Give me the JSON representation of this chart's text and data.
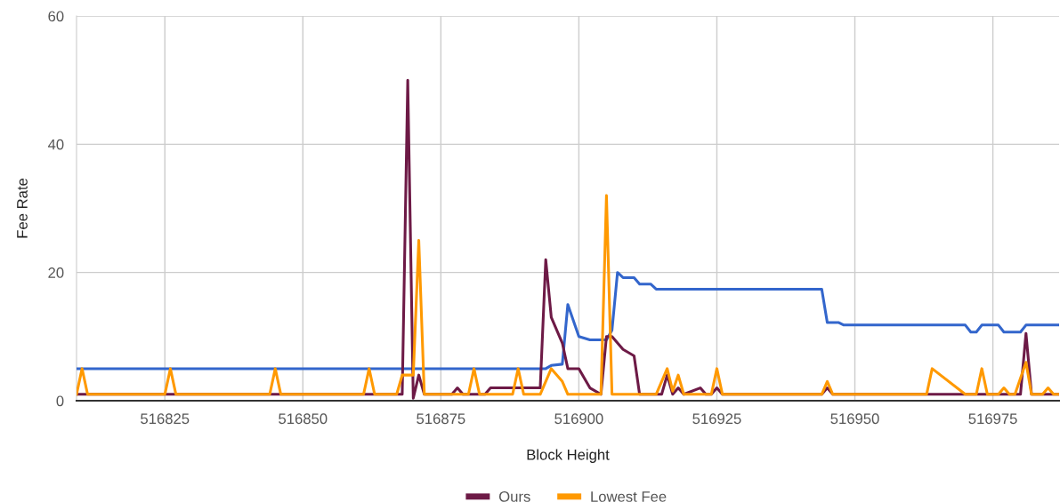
{
  "chart_data": {
    "type": "line",
    "xlabel": "Block Height",
    "ylabel": "Fee Rate",
    "xlim": [
      516809,
      516987
    ],
    "xticks": [
      516825,
      516850,
      516875,
      516900,
      516925,
      516950,
      516975
    ],
    "ylim": [
      0,
      60
    ],
    "yticks": [
      0,
      20,
      40,
      60
    ],
    "grid": true,
    "legend": "bottom",
    "marker": "none",
    "line_style": "solid",
    "series": [
      {
        "color": "#3366cc",
        "x": [
          516809,
          516894,
          516895,
          516897,
          516898,
          516900,
          516902,
          516905,
          516906,
          516907,
          516908,
          516910,
          516911,
          516913,
          516914,
          516944,
          516945,
          516947,
          516948,
          516970,
          516971,
          516972,
          516973,
          516976,
          516977,
          516980,
          516981,
          516987
        ],
        "values": [
          5,
          5,
          5.5,
          5.7,
          15,
          10,
          9.5,
          9.5,
          11,
          20,
          19.2,
          19.2,
          18.2,
          18.2,
          17.4,
          17.4,
          12.2,
          12.2,
          11.8,
          11.8,
          10.7,
          10.7,
          11.8,
          11.8,
          10.7,
          10.7,
          11.8,
          11.8
        ]
      },
      {
        "name": "Ours",
        "color": "#6d1a46",
        "x": [
          516809,
          516868,
          516869,
          516870,
          516871,
          516872,
          516877,
          516878,
          516879,
          516883,
          516884,
          516893,
          516894,
          516895,
          516897,
          516898,
          516900,
          516902,
          516904,
          516905,
          516906,
          516908,
          516910,
          516911,
          516915,
          516916,
          516917,
          516918,
          516919,
          516922,
          516923,
          516924,
          516925,
          516926,
          516944,
          516945,
          516946,
          516980,
          516981,
          516982,
          516987
        ],
        "values": [
          1,
          1,
          50,
          0.4,
          4,
          1,
          1,
          2,
          1,
          1,
          2,
          2,
          22,
          13,
          9,
          5,
          5,
          2,
          1,
          10,
          10,
          8,
          7,
          1,
          1,
          4,
          1,
          2,
          1,
          2,
          1,
          1,
          2,
          1,
          1,
          2,
          1,
          1,
          10.5,
          1,
          1
        ]
      },
      {
        "name": "Lowest Fee",
        "color": "#ff9900",
        "x": [
          516809,
          516810,
          516811,
          516825,
          516826,
          516827,
          516844,
          516845,
          516846,
          516861,
          516862,
          516863,
          516867,
          516868,
          516870,
          516871,
          516872,
          516880,
          516881,
          516882,
          516888,
          516889,
          516890,
          516893,
          516895,
          516897,
          516898,
          516904,
          516905,
          516906,
          516914,
          516916,
          516917,
          516918,
          516919,
          516924,
          516925,
          516926,
          516944,
          516945,
          516946,
          516963,
          516964,
          516970,
          516972,
          516973,
          516974,
          516976,
          516977,
          516978,
          516979,
          516981,
          516982,
          516984,
          516985,
          516986,
          516987
        ],
        "values": [
          1,
          5,
          1,
          1,
          5,
          1,
          1,
          5,
          1,
          1,
          5,
          1,
          1,
          4,
          4,
          25,
          1,
          1,
          5,
          1,
          1,
          5,
          1,
          1,
          5,
          3,
          1,
          1,
          32,
          1,
          1,
          5,
          1.5,
          4,
          1,
          1,
          5,
          1,
          1,
          3,
          1,
          1,
          5,
          1,
          1,
          5,
          1,
          1,
          2,
          1,
          1,
          6,
          1,
          1,
          2,
          1,
          1
        ]
      }
    ]
  }
}
